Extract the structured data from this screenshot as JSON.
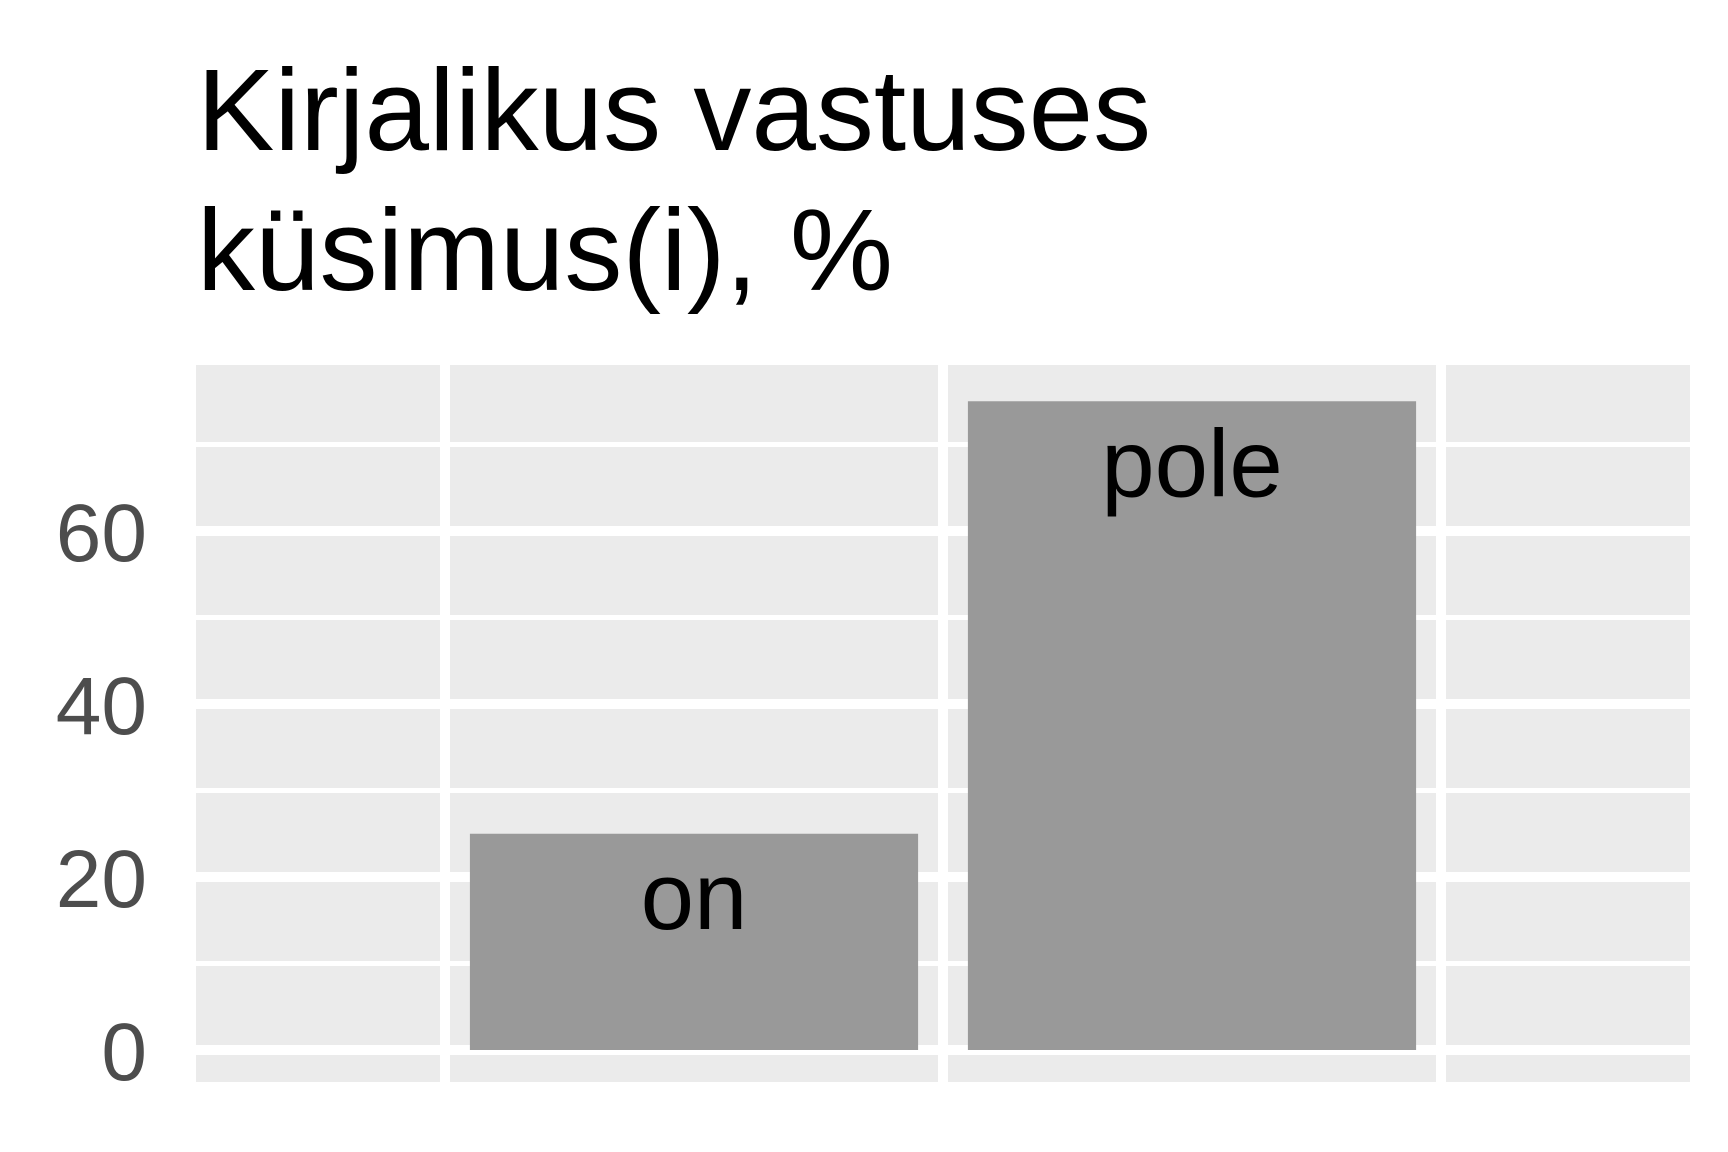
{
  "chart_data": {
    "type": "bar",
    "title_lines": [
      "Kirjalikus vastuses",
      "küsimus(i), %"
    ],
    "xlabel": "",
    "ylabel": "",
    "categories": [
      "on",
      "pole"
    ],
    "values": [
      25,
      75
    ],
    "data_labels": [
      "on",
      "pole"
    ],
    "ylim": [
      0,
      80
    ],
    "yticks": [
      0,
      20,
      40,
      60
    ],
    "y_tick_labels": [
      "0",
      "20",
      "40",
      "60"
    ],
    "grid": true,
    "legend": "none",
    "colors": {
      "panel": "#ebebeb",
      "gridline": "#ffffff",
      "bar": "#999999",
      "tick_text": "#4d4d4d",
      "label_text": "#000000"
    }
  }
}
